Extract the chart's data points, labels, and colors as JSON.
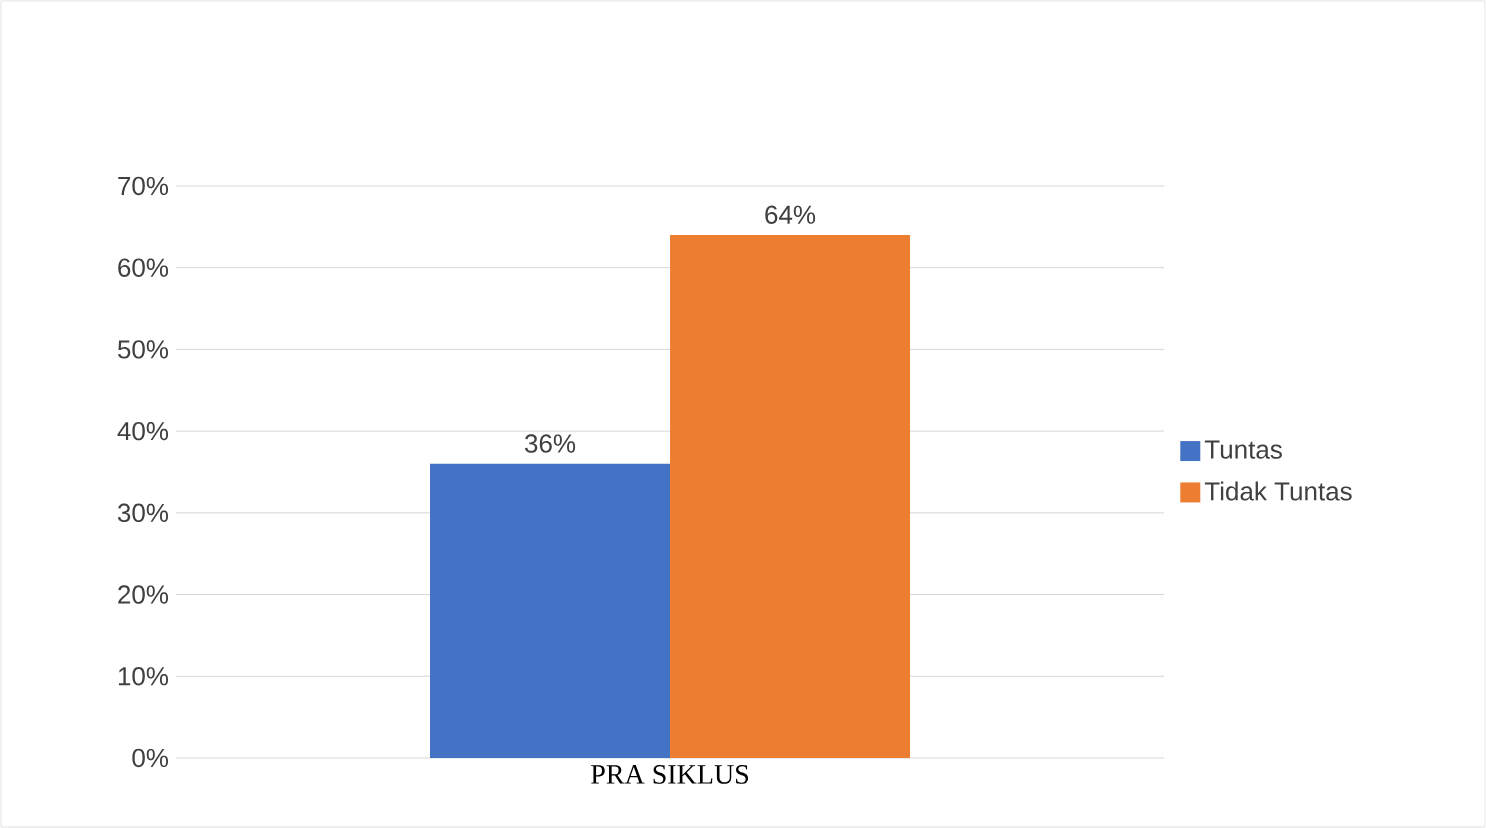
{
  "chart_data": {
    "type": "bar",
    "categories": [
      "PRA SIKLUS"
    ],
    "series": [
      {
        "name": "Tuntas",
        "color": "#4472c4",
        "values": [
          36
        ],
        "value_labels": [
          "36%"
        ]
      },
      {
        "name": "Tidak Tuntas",
        "color": "#ed7d31",
        "values": [
          64
        ],
        "value_labels": [
          "64%"
        ]
      }
    ],
    "ylim": [
      0,
      70
    ],
    "yticks": [
      {
        "value": 0,
        "label": "0%"
      },
      {
        "value": 10,
        "label": "10%"
      },
      {
        "value": 20,
        "label": "20%"
      },
      {
        "value": 30,
        "label": "30%"
      },
      {
        "value": 40,
        "label": "40%"
      },
      {
        "value": 50,
        "label": "50%"
      },
      {
        "value": 60,
        "label": "60%"
      },
      {
        "value": 70,
        "label": "70%"
      }
    ],
    "grid": "y",
    "legend": "right"
  }
}
